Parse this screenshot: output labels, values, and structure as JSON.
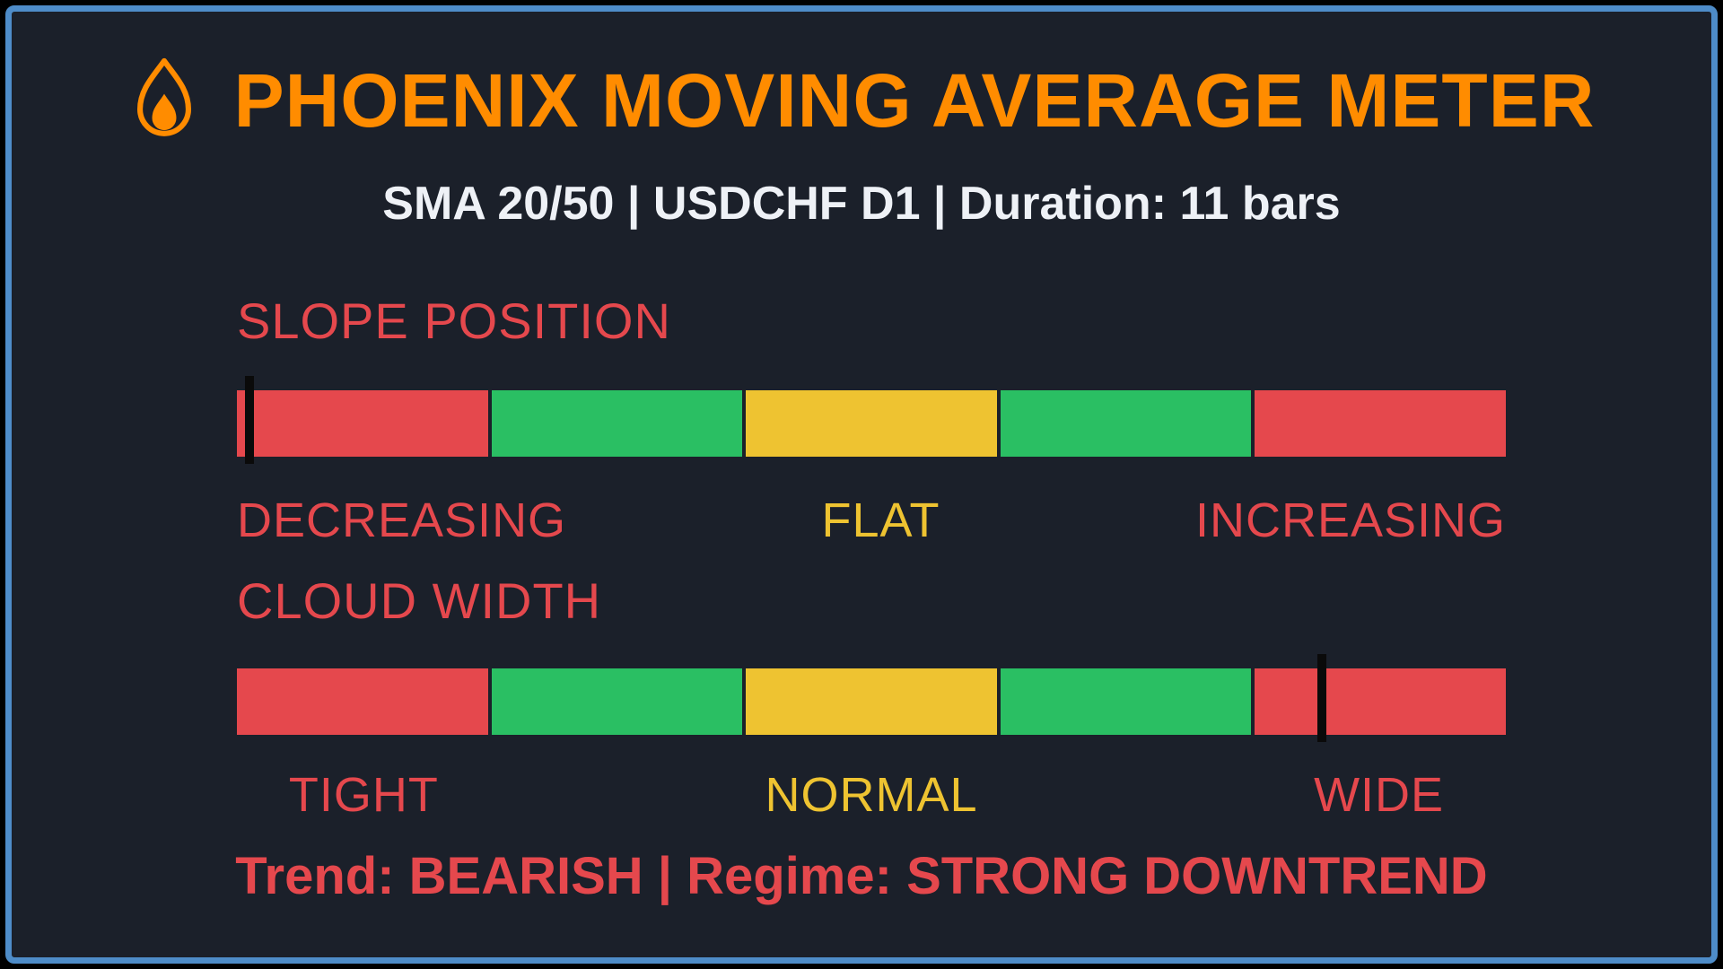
{
  "colors": {
    "background": "#1b202a",
    "panel_border": "#4e8cc8",
    "title_orange": "#ff8c00",
    "subtitle_white": "#eef1f6",
    "red": "#e5484d",
    "green": "#2abf63",
    "yellow": "#eec331",
    "marker_black": "#0a0a0a"
  },
  "header": {
    "title": "PHOENIX MOVING AVERAGE METER",
    "title_color": "title_orange",
    "subtitle": "SMA 20/50 | USDCHF D1 | Duration: 11 bars",
    "subtitle_color": "subtitle_white",
    "flame_icon": "flame-icon"
  },
  "chart_data": [
    {
      "type": "gauge",
      "title": "SLOPE POSITION",
      "title_color": "red",
      "segments": [
        "red",
        "green",
        "yellow",
        "green",
        "red"
      ],
      "segment_span_pct": 20,
      "marker_pct": 1.0,
      "labels": [
        {
          "text": "DECREASING",
          "color": "red",
          "zone_index": 0
        },
        {
          "text": "FLAT",
          "color": "yellow",
          "zone_index": 2
        },
        {
          "text": "INCREASING",
          "color": "red",
          "zone_index": 4
        }
      ]
    },
    {
      "type": "gauge",
      "title": "CLOUD WIDTH",
      "title_color": "red",
      "segments": [
        "red",
        "green",
        "yellow",
        "green",
        "red"
      ],
      "segment_span_pct": 20,
      "marker_pct": 85.5,
      "labels": [
        {
          "text": "TIGHT",
          "color": "red",
          "zone_index": 0
        },
        {
          "text": "NORMAL",
          "color": "yellow",
          "zone_index": 2
        },
        {
          "text": "WIDE",
          "color": "red",
          "zone_index": 4
        }
      ]
    }
  ],
  "status": {
    "text": "Trend: BEARISH | Regime: STRONG DOWNTREND",
    "color": "red"
  }
}
